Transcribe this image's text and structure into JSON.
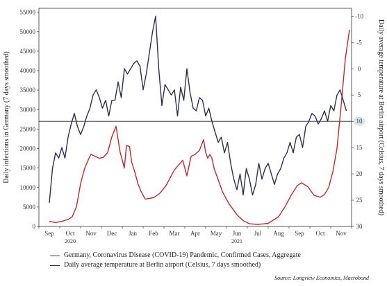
{
  "chart_data": {
    "type": "line",
    "y_left": {
      "label": "Daily infections in Germany (7 days smoothed)",
      "ticks": [
        0,
        5000,
        10000,
        15000,
        20000,
        25000,
        30000,
        35000,
        40000,
        45000,
        50000,
        55000
      ],
      "range": [
        0,
        56000
      ]
    },
    "y_right": {
      "label": "Daily average temperature at Berlin airport (Celsius, 7 days smoothed)",
      "ticks": [
        -10,
        -5,
        0,
        5,
        10,
        15,
        20,
        25,
        30
      ],
      "range": [
        -11.5,
        30
      ],
      "inverted": true
    },
    "x_ticks": [
      "Sep",
      "Oct",
      "Nov",
      "Dec",
      "Jan",
      "Feb",
      "Mar",
      "Apr",
      "May",
      "Jun",
      "Jul",
      "Aug",
      "Sep",
      "Oct",
      "Nov"
    ],
    "year_labels": [
      {
        "label": "2020",
        "month": "Oct"
      },
      {
        "label": "2021",
        "month": "Jun"
      }
    ],
    "reference_line": {
      "axis": "right",
      "value": 10,
      "label": "10"
    },
    "series": [
      {
        "name": "Germany, Coronavirus Disease (COVID-19) Pandemic, Confirmed Cases, Aggregate",
        "color": "#c1272d",
        "axis": "left",
        "x": [
          0,
          0.3,
          0.6,
          0.9,
          1.1,
          1.3,
          1.5,
          1.7,
          1.9,
          2.0,
          2.2,
          2.4,
          2.6,
          2.8,
          3.0,
          3.2,
          3.4,
          3.6,
          3.7,
          3.85,
          3.95,
          4.1,
          4.25,
          4.4,
          4.6,
          4.8,
          5.0,
          5.3,
          5.6,
          6.0,
          6.4,
          6.6,
          6.8,
          7.0,
          7.2,
          7.4,
          7.5,
          7.6,
          7.7,
          7.8,
          7.9,
          8.1,
          8.3,
          8.6,
          9.0,
          9.3,
          9.6,
          10.0,
          10.5,
          11.0,
          11.3,
          11.6,
          11.9,
          12.1,
          12.4,
          12.7,
          13.0,
          13.2,
          13.4,
          13.6,
          13.8,
          14.0,
          14.2,
          14.4
        ],
        "values": [
          1300,
          1000,
          1300,
          1800,
          2500,
          5000,
          11000,
          15000,
          17500,
          18500,
          18000,
          17500,
          17800,
          19000,
          23000,
          25700,
          19000,
          15000,
          20800,
          20500,
          16500,
          14000,
          11000,
          9000,
          7000,
          7200,
          7400,
          8500,
          10500,
          14500,
          17000,
          13000,
          18000,
          18500,
          19500,
          22300,
          19000,
          17500,
          18500,
          17500,
          15000,
          12000,
          9000,
          6000,
          3000,
          1500,
          700,
          500,
          800,
          2500,
          5000,
          8000,
          10500,
          11200,
          10200,
          8000,
          7500,
          8200,
          10000,
          14000,
          20000,
          31000,
          43000,
          50500
        ]
      },
      {
        "name": "Daily average temperature at Berlin airport (Celsius, 7 days smoothed)",
        "color": "#2b2f4a",
        "axis": "right",
        "x": [
          0,
          0.15,
          0.3,
          0.45,
          0.6,
          0.75,
          0.9,
          1.05,
          1.2,
          1.35,
          1.5,
          1.65,
          1.8,
          1.95,
          2.1,
          2.25,
          2.4,
          2.55,
          2.7,
          2.85,
          3.0,
          3.15,
          3.3,
          3.45,
          3.6,
          3.75,
          3.9,
          4.05,
          4.2,
          4.35,
          4.5,
          4.65,
          4.8,
          4.95,
          5.1,
          5.25,
          5.4,
          5.55,
          5.7,
          5.85,
          6.0,
          6.15,
          6.3,
          6.45,
          6.6,
          6.75,
          6.9,
          7.05,
          7.2,
          7.35,
          7.5,
          7.65,
          7.8,
          7.95,
          8.1,
          8.25,
          8.4,
          8.55,
          8.7,
          8.85,
          9.0,
          9.15,
          9.3,
          9.45,
          9.6,
          9.75,
          9.9,
          10.05,
          10.2,
          10.35,
          10.5,
          10.65,
          10.8,
          10.95,
          11.1,
          11.25,
          11.4,
          11.55,
          11.7,
          11.85,
          12.0,
          12.15,
          12.3,
          12.45,
          12.6,
          12.75,
          12.9,
          13.05,
          13.2,
          13.35,
          13.5,
          13.65,
          13.8,
          13.95,
          14.1,
          14.25
        ],
        "values": [
          25.5,
          19,
          16,
          17,
          15,
          17,
          13,
          10.5,
          8.5,
          11,
          12.5,
          11,
          9,
          7.5,
          5,
          4,
          5.5,
          7.5,
          6,
          9,
          6,
          6,
          2.5,
          5.5,
          0,
          1,
          0,
          -1,
          -1.5,
          -0.5,
          4,
          1,
          -3,
          -7,
          -10,
          0,
          7,
          3,
          4,
          5,
          4,
          9,
          3.5,
          6,
          0,
          4.5,
          7.5,
          8,
          5.5,
          6,
          9,
          7.5,
          10,
          12,
          14,
          13,
          16,
          14,
          18,
          21,
          23,
          20,
          24,
          19,
          21,
          24,
          22,
          18,
          21,
          19,
          18,
          20,
          22,
          20,
          19,
          17,
          16,
          14,
          16,
          13,
          12.5,
          15,
          11,
          10,
          8.5,
          9,
          10.5,
          9.5,
          8,
          10,
          7,
          8,
          5,
          4,
          6,
          8
        ]
      }
    ],
    "source": "Source: Longview Economics, Macrobond"
  }
}
